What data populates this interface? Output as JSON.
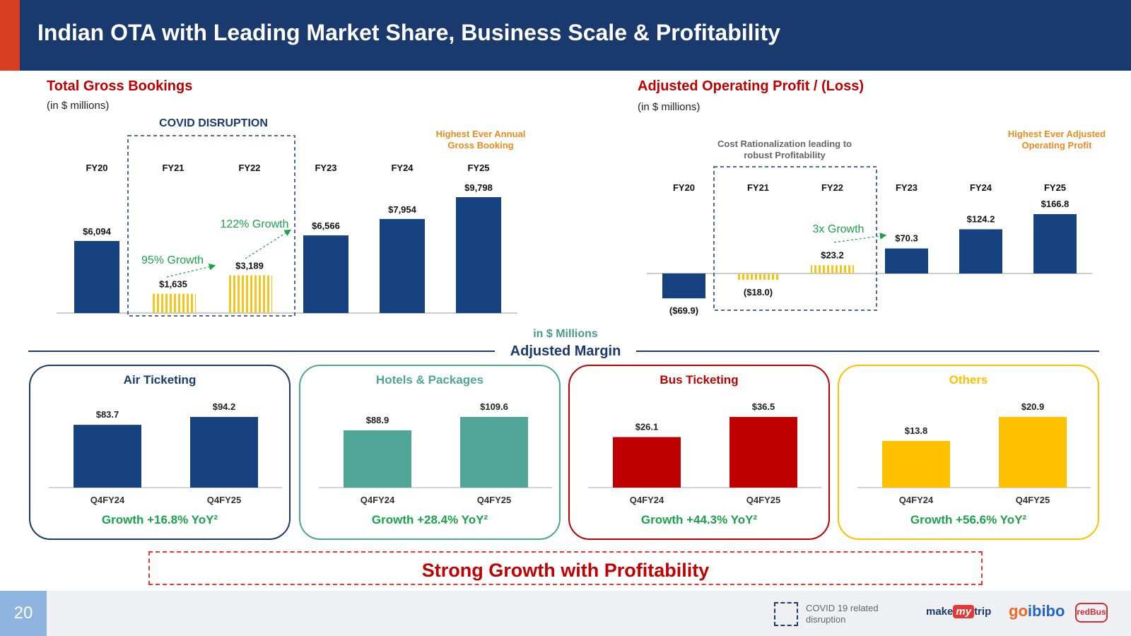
{
  "header": {
    "title": "Indian OTA with Leading Market Share, Business Scale & Profitability"
  },
  "gross_bookings": {
    "title": "Total Gross Bookings",
    "unit": "(in $ millions)",
    "covid_label": "COVID DISRUPTION",
    "highlight_note": "Highest Ever Annual Gross Booking",
    "growth_notes": [
      "95% Growth",
      "122% Growth"
    ]
  },
  "operating_profit": {
    "title": "Adjusted Operating Profit / (Loss)",
    "unit": "(in $ millions)",
    "cost_note": "Cost Rationalization leading to robust Profitability",
    "highlight_note": "Highest Ever Adjusted Operating Profit",
    "growth_note": "3x Growth"
  },
  "margin_section": {
    "unit": "in $ Millions",
    "title": "Adjusted Margin"
  },
  "banner": "Strong Growth with Profitability",
  "footer": {
    "page_number": "20",
    "legend": "COVID 19 related disruption",
    "logos": {
      "mmt_make": "make",
      "mmt_my": "my",
      "mmt_trip": "trip",
      "goibibo_a": "go",
      "goibibo_b": "ibibo",
      "redbus": "redBus"
    }
  },
  "colors": {
    "navy": "#15427e",
    "covid": "#f5c518",
    "teal": "#4fa596",
    "red": "#c00000",
    "yellow": "#ffc000",
    "growth": "#1aa34a"
  },
  "chart_data": [
    {
      "type": "bar",
      "title": "Total Gross Bookings",
      "categories": [
        "FY20",
        "FY21",
        "FY22",
        "FY23",
        "FY24",
        "FY25"
      ],
      "values": [
        6094,
        1635,
        3189,
        6566,
        7954,
        9798
      ],
      "value_labels": [
        "$6,094",
        "$1,635",
        "$3,189",
        "$6,566",
        "$7,954",
        "$9,798"
      ],
      "covid_affected": [
        false,
        true,
        true,
        false,
        false,
        false
      ]
    },
    {
      "type": "bar",
      "title": "Adjusted Operating Profit / (Loss)",
      "categories": [
        "FY20",
        "FY21",
        "FY22",
        "FY23",
        "FY24",
        "FY25"
      ],
      "values": [
        -69.9,
        -18.0,
        23.2,
        70.3,
        124.2,
        166.8
      ],
      "value_labels": [
        "($69.9)",
        "($18.0)",
        "$23.2",
        "$70.3",
        "$124.2",
        "$166.8"
      ],
      "covid_affected": [
        false,
        true,
        true,
        false,
        false,
        false
      ]
    },
    {
      "type": "bar",
      "title": "Air Ticketing",
      "categories": [
        "Q4FY24",
        "Q4FY25"
      ],
      "values": [
        83.7,
        94.2
      ],
      "value_labels": [
        "$83.7",
        "$94.2"
      ],
      "growth": "Growth +16.8% YoY²",
      "color": "#15427e"
    },
    {
      "type": "bar",
      "title": "Hotels & Packages",
      "categories": [
        "Q4FY24",
        "Q4FY25"
      ],
      "values": [
        88.9,
        109.6
      ],
      "value_labels": [
        "$88.9",
        "$109.6"
      ],
      "growth": "Growth +28.4% YoY²",
      "color": "#4fa596"
    },
    {
      "type": "bar",
      "title": "Bus Ticketing",
      "categories": [
        "Q4FY24",
        "Q4FY25"
      ],
      "values": [
        26.1,
        36.5
      ],
      "value_labels": [
        "$26.1",
        "$36.5"
      ],
      "growth": "Growth +44.3% YoY²",
      "color": "#c00000"
    },
    {
      "type": "bar",
      "title": "Others",
      "categories": [
        "Q4FY24",
        "Q4FY25"
      ],
      "values": [
        13.8,
        20.9
      ],
      "value_labels": [
        "$13.8",
        "$20.9"
      ],
      "growth": "Growth +56.6% YoY²",
      "color": "#ffc000"
    }
  ]
}
